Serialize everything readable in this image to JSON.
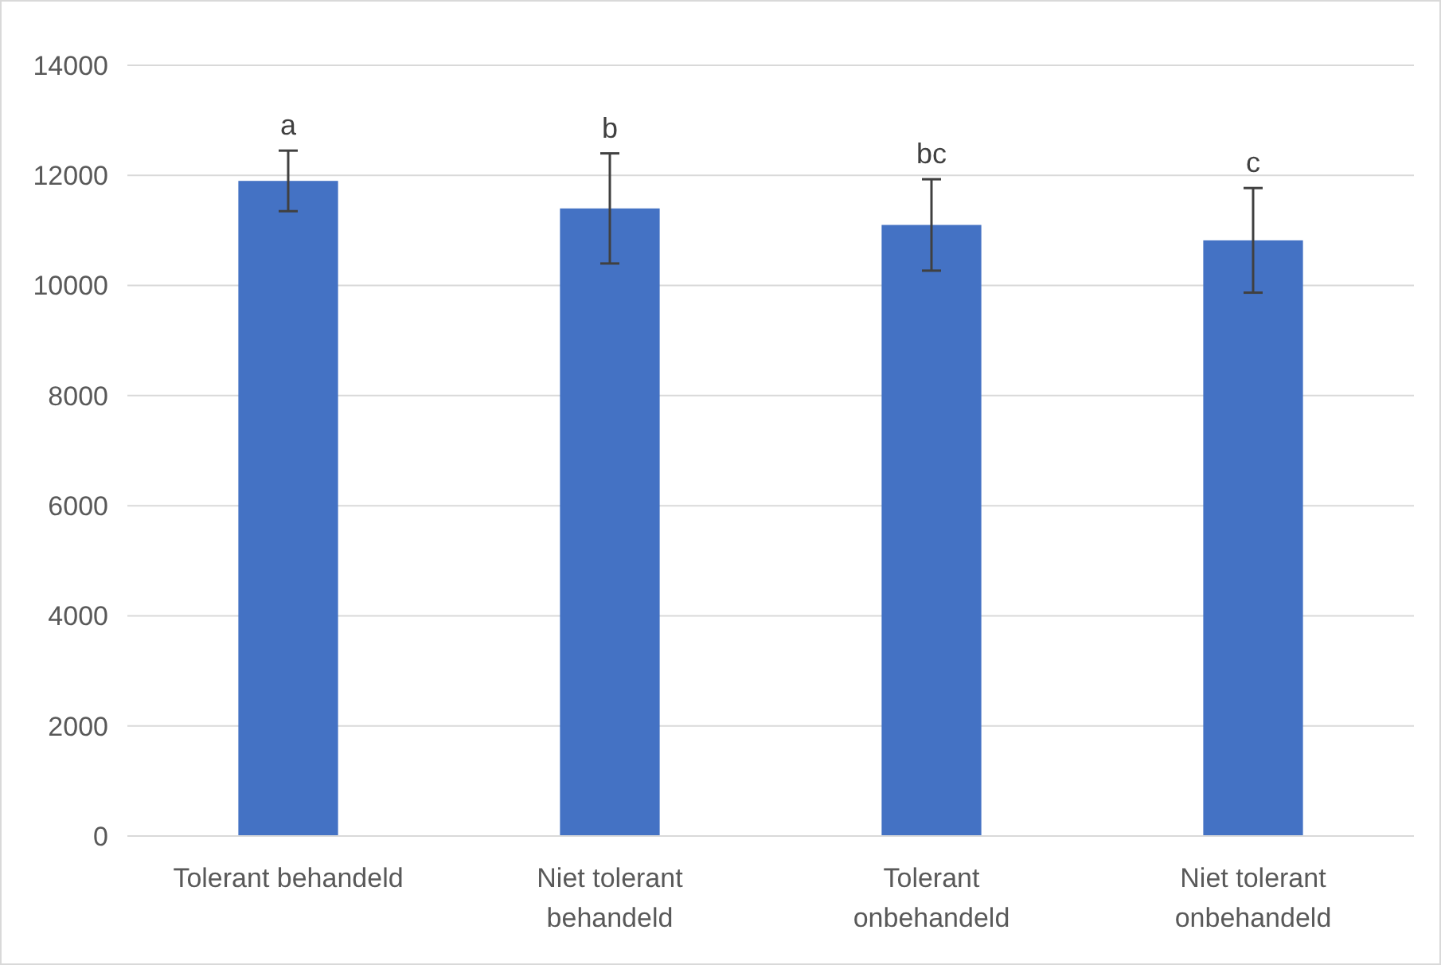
{
  "chart_data": {
    "type": "bar",
    "categories": [
      "Tolerant behandeld",
      "Niet tolerant behandeld",
      "Tolerant onbehandeld",
      "Niet tolerant onbehandeld"
    ],
    "values": [
      11900,
      11400,
      11100,
      10820
    ],
    "errors": [
      550,
      1000,
      830,
      950
    ],
    "color": "#4472c4",
    "ylim": [
      0,
      14000
    ],
    "yticks": [
      0,
      2000,
      4000,
      6000,
      8000,
      10000,
      12000,
      14000
    ],
    "grid": "y",
    "annotations": [
      {
        "text": "a",
        "x": "Tolerant behandeld",
        "y": 12450
      },
      {
        "text": "b",
        "x": "Niet tolerant behandeld",
        "y": 12400
      },
      {
        "text": "bc",
        "x": "Tolerant onbehandeld",
        "y": 11930
      },
      {
        "text": "c",
        "x": "Niet tolerant onbehandeld",
        "y": 11770
      }
    ]
  }
}
